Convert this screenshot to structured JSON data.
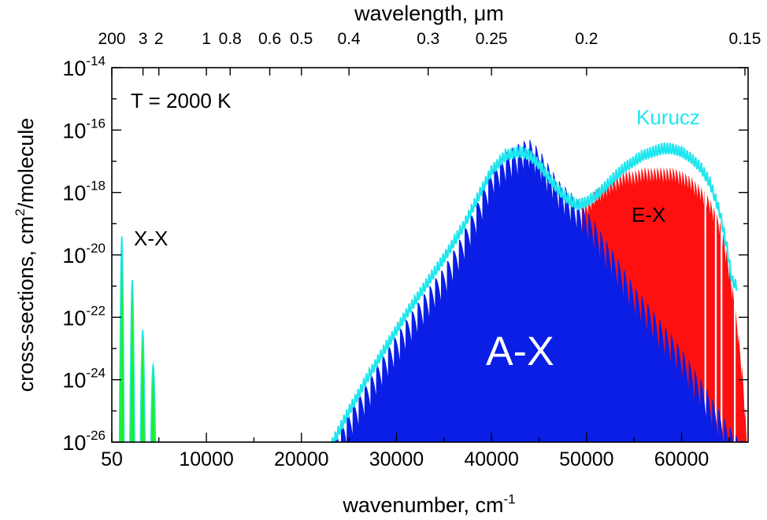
{
  "chart_data": {
    "type": "area",
    "yscale": "log",
    "annotation": "T = 2000 K",
    "xlabel": "wavenumber, cm",
    "xlabel_sup": "-1",
    "x2label": "wavelength,  μm",
    "ylabel": "cross-sections, cm",
    "ylabel_sup": "2",
    "ylabel_tail": "/molecule",
    "xlim": [
      50,
      67000
    ],
    "ylim": [
      1e-26,
      1e-14
    ],
    "x_ticks": [
      {
        "value": 50,
        "label": "50"
      },
      {
        "value": 10000,
        "label": "10000"
      },
      {
        "value": 20000,
        "label": "20000"
      },
      {
        "value": 30000,
        "label": "30000"
      },
      {
        "value": 40000,
        "label": "40000"
      },
      {
        "value": 50000,
        "label": "50000"
      },
      {
        "value": 60000,
        "label": "60000"
      }
    ],
    "x2_ticks": [
      {
        "value": 50,
        "label": "200"
      },
      {
        "value": 3333,
        "label": "3"
      },
      {
        "value": 5000,
        "label": "2"
      },
      {
        "value": 10000,
        "label": "1"
      },
      {
        "value": 12500,
        "label": "0.8"
      },
      {
        "value": 16667,
        "label": "0.6"
      },
      {
        "value": 20000,
        "label": "0.5"
      },
      {
        "value": 25000,
        "label": "0.4"
      },
      {
        "value": 33333,
        "label": "0.3"
      },
      {
        "value": 40000,
        "label": "0.25"
      },
      {
        "value": 50000,
        "label": "0.2"
      },
      {
        "value": 66667,
        "label": "0.15"
      }
    ],
    "y_ticks": [
      {
        "value": -14,
        "base": "10",
        "exp": "-14"
      },
      {
        "value": -16,
        "base": "10",
        "exp": "-16"
      },
      {
        "value": -18,
        "base": "10",
        "exp": "-18"
      },
      {
        "value": -20,
        "base": "10",
        "exp": "-20"
      },
      {
        "value": -22,
        "base": "10",
        "exp": "-22"
      },
      {
        "value": -24,
        "base": "10",
        "exp": "-24"
      },
      {
        "value": -26,
        "base": "10",
        "exp": "-26"
      }
    ],
    "series": [
      {
        "name": "X-X",
        "color": "#22ee22",
        "peaks_x": [
          1100,
          2200,
          3300,
          4400
        ],
        "peaks_log10_y": [
          -19.4,
          -20.8,
          -22.4,
          -23.5
        ],
        "bands": true
      },
      {
        "name": "A-X",
        "color": "#0a1ee6",
        "x": [
          23000,
          25000,
          27000,
          29000,
          31000,
          33000,
          35000,
          37000,
          38500,
          40000,
          41500,
          43000,
          44000,
          45000,
          46000,
          47000,
          48000,
          49000,
          50000,
          51000,
          52000,
          53000,
          54000,
          55000,
          56000,
          57000,
          58000,
          59000,
          60000,
          61000,
          62000,
          63000,
          64000,
          65000,
          66000,
          66800
        ],
        "log10_y": [
          -26,
          -25.0,
          -24.0,
          -23.0,
          -22.1,
          -21.2,
          -20.4,
          -19.3,
          -18.3,
          -17.2,
          -16.7,
          -16.4,
          -16.3,
          -16.6,
          -17.1,
          -17.6,
          -17.9,
          -18.2,
          -18.6,
          -19.0,
          -19.5,
          -20.0,
          -20.5,
          -21.0,
          -21.4,
          -21.8,
          -22.2,
          -22.6,
          -23.0,
          -23.5,
          -24.0,
          -24.5,
          -25.0,
          -25.5,
          -25.9,
          -26
        ]
      },
      {
        "name": "E-X",
        "color": "#ff1010",
        "x": [
          49500,
          50000,
          51000,
          52000,
          53000,
          54000,
          55000,
          56000,
          57000,
          58000,
          59000,
          60000,
          61000,
          62000,
          63000,
          64000,
          64500,
          65000,
          65500,
          66000,
          66500,
          66900
        ],
        "log10_y": [
          -18.5,
          -18.3,
          -17.9,
          -17.7,
          -17.5,
          -17.3,
          -17.3,
          -17.2,
          -17.2,
          -17.2,
          -17.2,
          -17.3,
          -17.5,
          -17.8,
          -18.2,
          -18.9,
          -19.5,
          -20.3,
          -21.3,
          -22.5,
          -24.0,
          -26
        ]
      },
      {
        "name": "Kurucz",
        "color": "#1ee6ee",
        "x": [
          23000,
          25000,
          27000,
          29000,
          31000,
          33000,
          35000,
          37000,
          38500,
          40000,
          41500,
          43000,
          44000,
          45000,
          46000,
          47000,
          48000,
          49000,
          50000,
          51000,
          52000,
          53000,
          54000,
          55000,
          56000,
          57000,
          58000,
          59000,
          60000,
          61000,
          62000,
          63000,
          64000,
          64800,
          65300,
          65800
        ],
        "log10_y": [
          -26,
          -24.8,
          -23.7,
          -22.7,
          -21.7,
          -20.8,
          -19.9,
          -18.9,
          -18.0,
          -17.1,
          -16.6,
          -16.5,
          -16.6,
          -16.9,
          -17.3,
          -17.7,
          -18.0,
          -18.2,
          -18.1,
          -17.9,
          -17.6,
          -17.3,
          -17.0,
          -16.8,
          -16.6,
          -16.5,
          -16.4,
          -16.4,
          -16.5,
          -16.7,
          -17.0,
          -17.5,
          -18.4,
          -19.6,
          -20.6,
          -20.8
        ]
      }
    ],
    "labels": {
      "xx": "X-X",
      "ax": "A-X",
      "ex": "E-X",
      "kurucz": "Kurucz"
    }
  }
}
